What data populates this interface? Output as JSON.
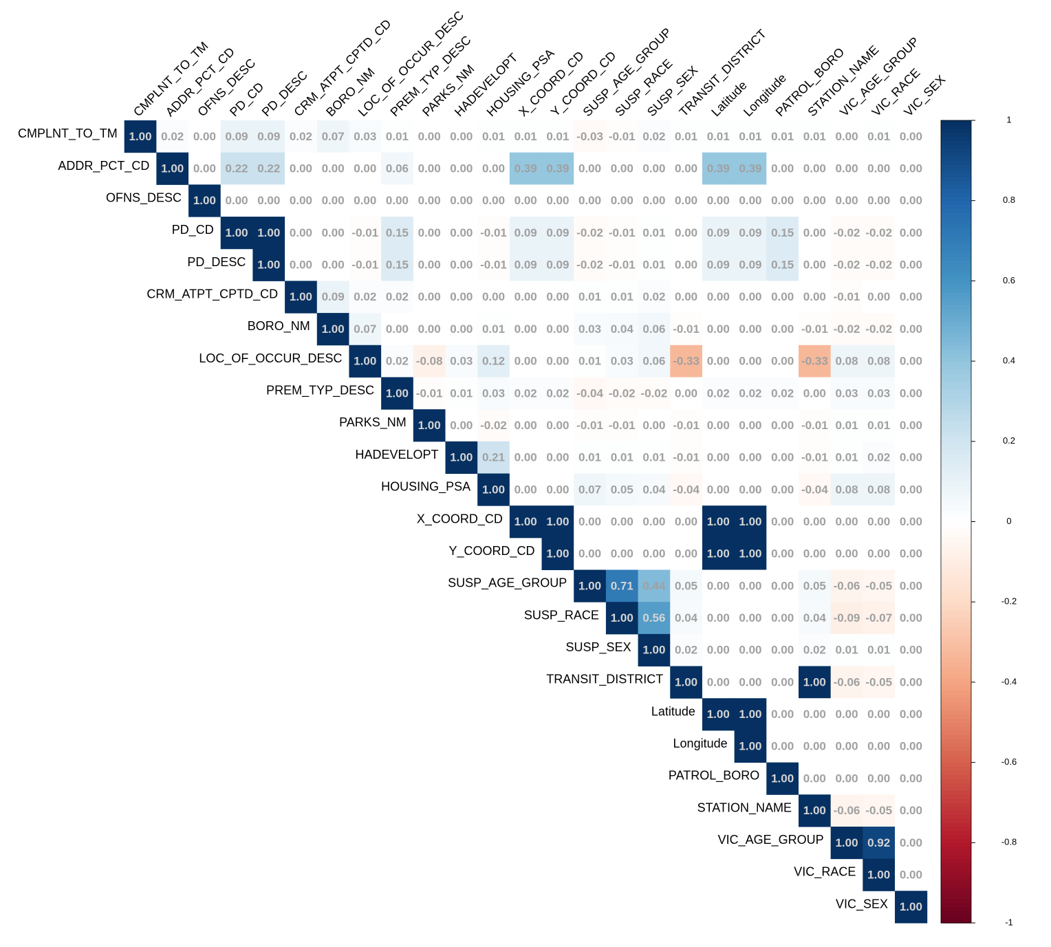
{
  "chart_data": {
    "type": "heatmap",
    "categories": [
      "CMPLNT_TO_TM",
      "ADDR_PCT_CD",
      "OFNS_DESC",
      "PD_CD",
      "PD_DESC",
      "CRM_ATPT_CPTD_CD",
      "BORO_NM",
      "LOC_OF_OCCUR_DESC",
      "PREM_TYP_DESC",
      "PARKS_NM",
      "HADEVELOPT",
      "HOUSING_PSA",
      "X_COORD_CD",
      "Y_COORD_CD",
      "SUSP_AGE_GROUP",
      "SUSP_RACE",
      "SUSP_SEX",
      "TRANSIT_DISTRICT",
      "Latitude",
      "Longitude",
      "PATROL_BORO",
      "STATION_NAME",
      "VIC_AGE_GROUP",
      "VIC_RACE",
      "VIC_SEX"
    ],
    "values": [
      [
        1,
        0.02,
        0,
        0.09,
        0.09,
        0.02,
        0.07,
        0.03,
        0.01,
        0,
        0,
        0.01,
        0.01,
        0.01,
        -0.03,
        -0.01,
        0.02,
        0.01,
        0.01,
        0.01,
        0.01,
        0.01,
        0,
        0.01,
        0
      ],
      [
        1,
        0,
        0.22,
        0.22,
        0,
        0,
        0,
        0.06,
        0,
        0,
        0,
        0.39,
        0.39,
        0,
        0,
        0,
        0,
        0.39,
        0.39,
        0,
        0,
        0,
        0,
        0
      ],
      [
        1,
        0,
        0,
        0,
        0,
        0,
        0,
        0,
        0,
        0,
        0,
        0,
        0,
        0,
        0,
        0,
        0,
        0,
        0,
        0,
        0,
        0,
        0
      ],
      [
        1,
        1,
        0,
        0,
        -0.01,
        0.15,
        0,
        0,
        -0.01,
        0.09,
        0.09,
        -0.02,
        -0.01,
        0.01,
        0,
        0.09,
        0.09,
        0.15,
        0,
        -0.02,
        -0.02,
        0
      ],
      [
        1,
        0,
        0,
        -0.01,
        0.15,
        0,
        0,
        -0.01,
        0.09,
        0.09,
        -0.02,
        -0.01,
        0.01,
        0,
        0.09,
        0.09,
        0.15,
        0,
        -0.02,
        -0.02,
        0
      ],
      [
        1,
        0.09,
        0.02,
        0.02,
        0,
        0,
        0,
        0,
        0,
        0.01,
        0.01,
        0.02,
        0,
        0,
        0,
        0,
        0,
        -0.01,
        0,
        0
      ],
      [
        1,
        0.07,
        0,
        0,
        0,
        0.01,
        0,
        0,
        0.03,
        0.04,
        0.06,
        -0.01,
        0,
        0,
        0,
        -0.01,
        -0.02,
        -0.02,
        0
      ],
      [
        1,
        0.02,
        -0.08,
        0.03,
        0.12,
        0,
        0,
        0.01,
        0.03,
        0.06,
        -0.33,
        0,
        0,
        0,
        -0.33,
        0.08,
        0.08,
        0
      ],
      [
        1,
        -0.01,
        0.01,
        0.03,
        0.02,
        0.02,
        -0.04,
        -0.02,
        -0.02,
        0,
        0.02,
        0.02,
        0.02,
        0,
        0.03,
        0.03,
        0
      ],
      [
        1,
        0,
        -0.02,
        0,
        0,
        -0.01,
        -0.01,
        0,
        -0.01,
        0,
        0,
        0,
        -0.01,
        0.01,
        0.01,
        0
      ],
      [
        1,
        0.21,
        0,
        0,
        0.01,
        0.01,
        0.01,
        -0.01,
        0,
        0,
        0,
        -0.01,
        0.01,
        0.02,
        0
      ],
      [
        1,
        0,
        0,
        0.07,
        0.05,
        0.04,
        -0.04,
        0,
        0,
        0,
        -0.04,
        0.08,
        0.08,
        0
      ],
      [
        1,
        1,
        0,
        0,
        0,
        0,
        1,
        1,
        0,
        0,
        0,
        0,
        0
      ],
      [
        1,
        0,
        0,
        0,
        0,
        1,
        1,
        0,
        0,
        0,
        0,
        0
      ],
      [
        1,
        0.71,
        0.44,
        0.05,
        0,
        0,
        0,
        0.05,
        -0.06,
        -0.05,
        0
      ],
      [
        1,
        0.56,
        0.04,
        0,
        0,
        0,
        0.04,
        -0.09,
        -0.07,
        0
      ],
      [
        1,
        0.02,
        0,
        0,
        0,
        0.02,
        0.01,
        0.01,
        0
      ],
      [
        1,
        0,
        0,
        0,
        1,
        -0.06,
        -0.05,
        0
      ],
      [
        1,
        1,
        0,
        0,
        0,
        0,
        0
      ],
      [
        1,
        0,
        0,
        0,
        0,
        0
      ],
      [
        1,
        0,
        0,
        0,
        0
      ],
      [
        1,
        -0.06,
        -0.05,
        0
      ],
      [
        1,
        0.92,
        0
      ],
      [
        1,
        0
      ],
      [
        1
      ]
    ],
    "value_labels": [
      [
        "1.00",
        "0.02",
        "0.00",
        "0.09",
        "0.09",
        "0.02",
        "0.07",
        "0.03",
        "0.01",
        "0.00",
        "0.00",
        "0.01",
        "0.01",
        "0.01",
        "-0.03",
        "-0.01",
        "0.02",
        "0.01",
        "0.01",
        "0.01",
        "0.01",
        "0.01",
        "0.00",
        "0.01",
        "0.00"
      ],
      [
        "1.00",
        "0.00",
        "0.22",
        "0.22",
        "0.00",
        "0.00",
        "0.00",
        "0.06",
        "0.00",
        "0.00",
        "0.00",
        "0.39",
        "0.39",
        "0.00",
        "0.00",
        "0.00",
        "0.00",
        "0.39",
        "0.39",
        "0.00",
        "0.00",
        "0.00",
        "0.00",
        "0.00"
      ],
      [
        "1.00",
        "0.00",
        "0.00",
        "0.00",
        "0.00",
        "0.00",
        "0.00",
        "0.00",
        "0.00",
        "0.00",
        "0.00",
        "0.00",
        "0.00",
        "0.00",
        "0.00",
        "0.00",
        "0.00",
        "0.00",
        "0.00",
        "0.00",
        "0.00",
        "0.00",
        "0.00"
      ],
      [
        "1.00",
        "1.00",
        "0.00",
        "0.00",
        "-0.01",
        "0.15",
        "0.00",
        "0.00",
        "-0.01",
        "0.09",
        "0.09",
        "-0.02",
        "-0.01",
        "0.01",
        "0.00",
        "0.09",
        "0.09",
        "0.15",
        "0.00",
        "-0.02",
        "-0.02",
        "0.00"
      ],
      [
        "1.00",
        "0.00",
        "0.00",
        "-0.01",
        "0.15",
        "0.00",
        "0.00",
        "-0.01",
        "0.09",
        "0.09",
        "-0.02",
        "-0.01",
        "0.01",
        "0.00",
        "0.09",
        "0.09",
        "0.15",
        "0.00",
        "-0.02",
        "-0.02",
        "0.00"
      ],
      [
        "1.00",
        "0.09",
        "0.02",
        "0.02",
        "0.00",
        "0.00",
        "0.00",
        "0.00",
        "0.00",
        "0.01",
        "0.01",
        "0.02",
        "0.00",
        "0.00",
        "0.00",
        "0.00",
        "0.00",
        "-0.01",
        "0.00",
        "0.00"
      ],
      [
        "1.00",
        "0.07",
        "0.00",
        "0.00",
        "0.00",
        "0.01",
        "0.00",
        "0.00",
        "0.03",
        "0.04",
        "0.06",
        "-0.01",
        "0.00",
        "0.00",
        "0.00",
        "-0.01",
        "-0.02",
        "-0.02",
        "0.00"
      ],
      [
        "1.00",
        "0.02",
        "-0.08",
        "0.03",
        "0.12",
        "0.00",
        "0.00",
        "0.01",
        "0.03",
        "0.06",
        "-0.33",
        "0.00",
        "0.00",
        "0.00",
        "-0.33",
        "0.08",
        "0.08",
        "0.00"
      ],
      [
        "1.00",
        "-0.01",
        "0.01",
        "0.03",
        "0.02",
        "0.02",
        "-0.04",
        "-0.02",
        "-0.02",
        "0.00",
        "0.02",
        "0.02",
        "0.02",
        "0.00",
        "0.03",
        "0.03",
        "0.00"
      ],
      [
        "1.00",
        "0.00",
        "-0.02",
        "0.00",
        "0.00",
        "-0.01",
        "-0.01",
        "0.00",
        "-0.01",
        "0.00",
        "0.00",
        "0.00",
        "-0.01",
        "0.01",
        "0.01",
        "0.00"
      ],
      [
        "1.00",
        "0.21",
        "0.00",
        "0.00",
        "0.01",
        "0.01",
        "0.01",
        "-0.01",
        "0.00",
        "0.00",
        "0.00",
        "-0.01",
        "0.01",
        "0.02",
        "0.00"
      ],
      [
        "1.00",
        "0.00",
        "0.00",
        "0.07",
        "0.05",
        "0.04",
        "-0.04",
        "0.00",
        "0.00",
        "0.00",
        "-0.04",
        "0.08",
        "0.08",
        "0.00"
      ],
      [
        "1.00",
        "1.00",
        "0.00",
        "0.00",
        "0.00",
        "0.00",
        "1.00",
        "1.00",
        "0.00",
        "0.00",
        "0.00",
        "0.00",
        "0.00"
      ],
      [
        "1.00",
        "0.00",
        "0.00",
        "0.00",
        "0.00",
        "1.00",
        "1.00",
        "0.00",
        "0.00",
        "0.00",
        "0.00",
        "0.00"
      ],
      [
        "1.00",
        "0.71",
        "0.44",
        "0.05",
        "0.00",
        "0.00",
        "0.00",
        "0.05",
        "-0.06",
        "-0.05",
        "0.00"
      ],
      [
        "1.00",
        "0.56",
        "0.04",
        "0.00",
        "0.00",
        "0.00",
        "0.04",
        "-0.09",
        "-0.07",
        "0.00"
      ],
      [
        "1.00",
        "0.02",
        "0.00",
        "0.00",
        "0.00",
        "0.02",
        "0.01",
        "0.01",
        "0.00"
      ],
      [
        "1.00",
        "0.00",
        "0.00",
        "0.00",
        "1.00",
        "-0.06",
        "-0.05",
        "0.00"
      ],
      [
        "1.00",
        "1.00",
        "0.00",
        "0.00",
        "0.00",
        "0.00",
        "0.00"
      ],
      [
        "1.00",
        "0.00",
        "0.00",
        "0.00",
        "0.00",
        "0.00"
      ],
      [
        "1.00",
        "0.00",
        "0.00",
        "0.00",
        "0.00"
      ],
      [
        "1.00",
        "-0.06",
        "-0.05",
        "0.00"
      ],
      [
        "1.00",
        "0.92",
        "0.00"
      ],
      [
        "1.00",
        "0.00"
      ],
      [
        "1.00"
      ]
    ],
    "colors": [
      "#67001F",
      "#B2182B",
      "#D6604D",
      "#F4A582",
      "#FDDBC7",
      "#FFFFFF",
      "#D1E5F0",
      "#92C5DE",
      "#4393C3",
      "#2166AC",
      "#053061"
    ],
    "colorbar_lim": [
      -1,
      1
    ],
    "colorbar_ticks": [
      1,
      0.8,
      0.6,
      0.4,
      0.2,
      0,
      -0.2,
      -0.4,
      -0.6,
      -0.8,
      -1
    ]
  }
}
